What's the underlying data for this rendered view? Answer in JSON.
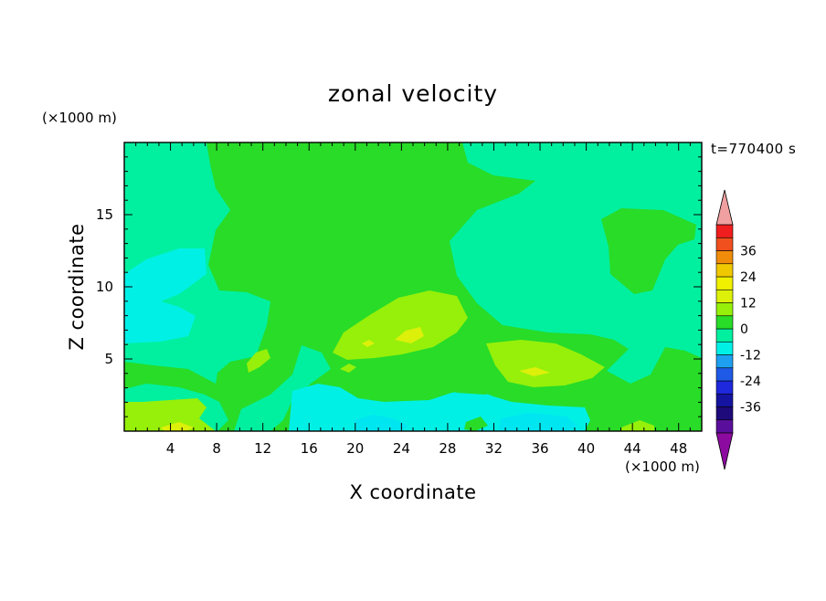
{
  "chart_data": {
    "type": "heatmap",
    "title": "zonal velocity",
    "xlabel": "X coordinate",
    "ylabel": "Z coordinate",
    "x_unit": "(×1000 m)",
    "y_unit": "(×1000 m)",
    "time_label": "t=770400 s",
    "xlim": [
      0,
      50
    ],
    "ylim": [
      0,
      20
    ],
    "x_ticks": [
      4,
      8,
      12,
      16,
      20,
      24,
      28,
      32,
      36,
      40,
      44,
      48
    ],
    "y_ticks": [
      5,
      10,
      15
    ],
    "colorbar": {
      "levels": [
        -42,
        -36,
        -30,
        -24,
        -18,
        -12,
        -6,
        0,
        6,
        12,
        18,
        24,
        30,
        36,
        42
      ],
      "labeled_ticks": [
        -36,
        -24,
        -12,
        0,
        12,
        24,
        36
      ],
      "colors": [
        "#5a0f9c",
        "#1e0a7a",
        "#1414a0",
        "#1e28dc",
        "#1e5ae6",
        "#1ea0f0",
        "#00f0e6",
        "#00f0a0",
        "#28dc28",
        "#96f00a",
        "#dcf00a",
        "#f0f000",
        "#f0c800",
        "#f08c0a",
        "#f0501e",
        "#f01e1e",
        "#dc141e"
      ],
      "under_color": "#8c0aa0",
      "over_color": "#f0a0a0"
    },
    "grid": false
  }
}
